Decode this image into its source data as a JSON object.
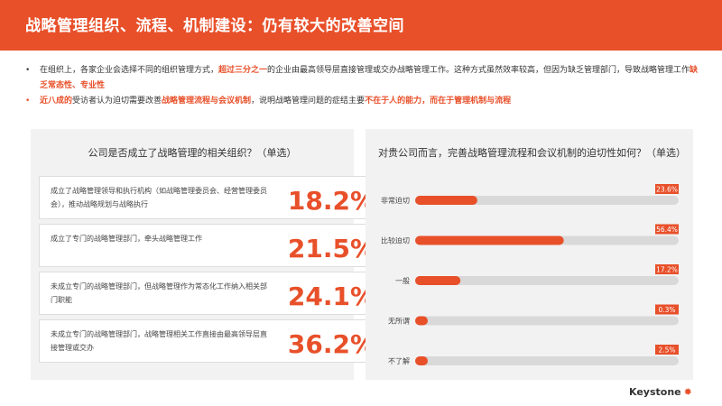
{
  "header": {
    "title": "战略管理组织、流程、机制建设：仍有较大的改善空间"
  },
  "bullets": [
    {
      "parts": [
        {
          "text": "在组织上，各家企业会选择不同的组织管理方式，",
          "hl": false
        },
        {
          "text": "超过三分之一",
          "hl": true
        },
        {
          "text": "的企业由最高领导层直接管理或交办战略管理工作。这种方式虽然效率较高，但因为缺乏管理部门，导致战略管理工作",
          "hl": false
        },
        {
          "text": "缺乏常态性、专业性",
          "hl": true
        }
      ]
    },
    {
      "parts": [
        {
          "text": "近八成的",
          "hl": true
        },
        {
          "text": "受访者认为迫切需要改善",
          "hl": false
        },
        {
          "text": "战略管理流程与会议机制",
          "hl": true
        },
        {
          "text": "，说明战略管理问题的症结主要",
          "hl": false
        },
        {
          "text": "不在于人的能力，而在于管理机制与流程",
          "hl": true
        }
      ]
    }
  ],
  "left_panel": {
    "title": "公司是否成立了战略管理的相关组织？（单选）",
    "items": [
      {
        "text": "成立了战略管理领导和执行机构（如战略管理委员会、经营管理委员会），推动战略规划与战略执行",
        "value": "18.2%"
      },
      {
        "text": "成立了专门的战略管理部门，牵头战略管理工作",
        "value": "21.5%"
      },
      {
        "text": "未成立专门的战略管理部门，但战略管理作为常态化工作纳入相关部门职能",
        "value": "24.1%"
      },
      {
        "text": "未成立专门的战略管理部门，战略管理相关工作直接由最高领导层直接管理或交办",
        "value": "36.2%"
      }
    ]
  },
  "chart_data": {
    "type": "bar",
    "orientation": "horizontal",
    "title": "对贵公司而言，完善战略管理流程和会议机制的迫切性如何？（单选）",
    "categories": [
      "非常迫切",
      "比较迫切",
      "一般",
      "无所谓",
      "不了解"
    ],
    "values": [
      23.6,
      56.4,
      17.2,
      0.3,
      2.5
    ],
    "value_labels": [
      "23.6%",
      "56.4%",
      "17.2%",
      "0.3%",
      "2.5%"
    ],
    "xlim": [
      0,
      100
    ],
    "bar_color": "#e8502a",
    "track_color": "#d9d9d9"
  },
  "footer": {
    "logo": "Keystone",
    "logo_icon": "sun-icon"
  }
}
